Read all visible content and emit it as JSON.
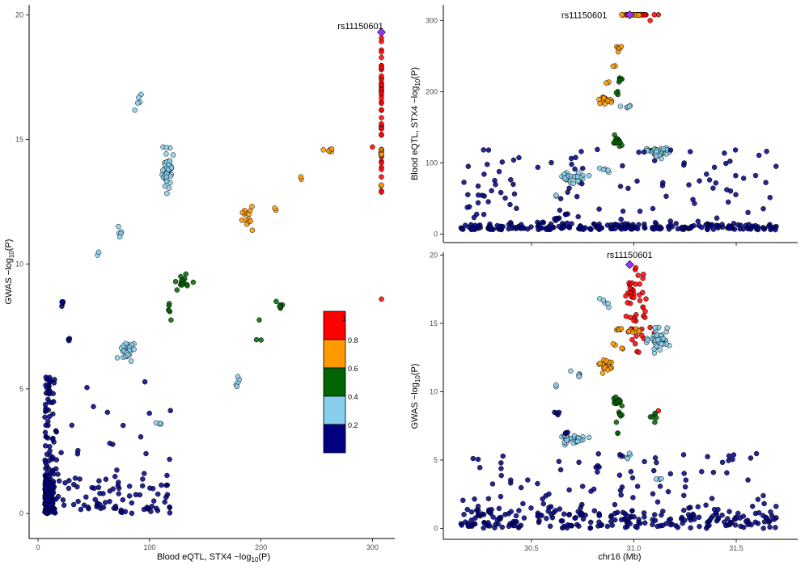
{
  "figure": {
    "lead_snp": "rs11150601"
  },
  "colors": {
    "ld_bins": [
      "#000080",
      "#87CEEB",
      "#006400",
      "#FF9900",
      "#FF0000"
    ],
    "lead": "#9933FF",
    "axis": "#000000",
    "tick_text": "#4d4d4d"
  },
  "legend": {
    "tick_labels": [
      "0.2",
      "0.4",
      "0.6",
      "0.8",
      "1"
    ],
    "placement": "lower-center of left panel"
  },
  "chart_data": [
    {
      "id": "scatter",
      "type": "scatter",
      "xlabel_main": "Blood eQTL, STX4 −log",
      "xlabel_sub": "10",
      "xlabel_tail": "(P)",
      "ylabel_main": "GWAS −log",
      "ylabel_sub": "10",
      "ylabel_tail": "(P)",
      "xlim": [
        -8,
        320
      ],
      "ylim": [
        -1,
        20.4
      ],
      "xticks": [
        0,
        100,
        200,
        300
      ],
      "yticks": [
        0,
        5,
        10,
        15,
        20
      ],
      "tick_labels_x": [
        "0",
        "100",
        "200",
        "300"
      ],
      "tick_labels_y": [
        "0",
        "5",
        "10",
        "15",
        "20"
      ],
      "lead_point": {
        "x": 308,
        "y": 19.3
      }
    },
    {
      "id": "locus_eqtl",
      "type": "scatter",
      "ylabel_main": "Blood eQTL, STX4 −log",
      "ylabel_sub": "10",
      "ylabel_tail": "(P)",
      "xlim": [
        30.07,
        31.8
      ],
      "ylim": [
        -12,
        322
      ],
      "xticks": [
        30.5,
        31.0,
        31.5
      ],
      "yticks": [
        0,
        100,
        200,
        300
      ],
      "tick_labels_y": [
        "0",
        "100",
        "200",
        "300"
      ],
      "lead_point": {
        "x": 30.98,
        "y": 308
      }
    },
    {
      "id": "locus_gwas",
      "type": "scatter",
      "xlabel_main": "chr16 (Mb)",
      "ylabel_main": "GWAS −log",
      "ylabel_sub": "10",
      "ylabel_tail": "(P)",
      "xlim": [
        30.07,
        31.8
      ],
      "ylim": [
        -0.8,
        20.2
      ],
      "xticks": [
        30.5,
        31.0,
        31.5
      ],
      "yticks": [
        0,
        5,
        10,
        15,
        20
      ],
      "tick_labels_x": [
        "30.5",
        "31.0",
        "31.5"
      ],
      "tick_labels_y": [
        "0",
        "5",
        "10",
        "15",
        "20"
      ],
      "lead_point": {
        "x": 30.98,
        "y": 19.3
      }
    }
  ]
}
